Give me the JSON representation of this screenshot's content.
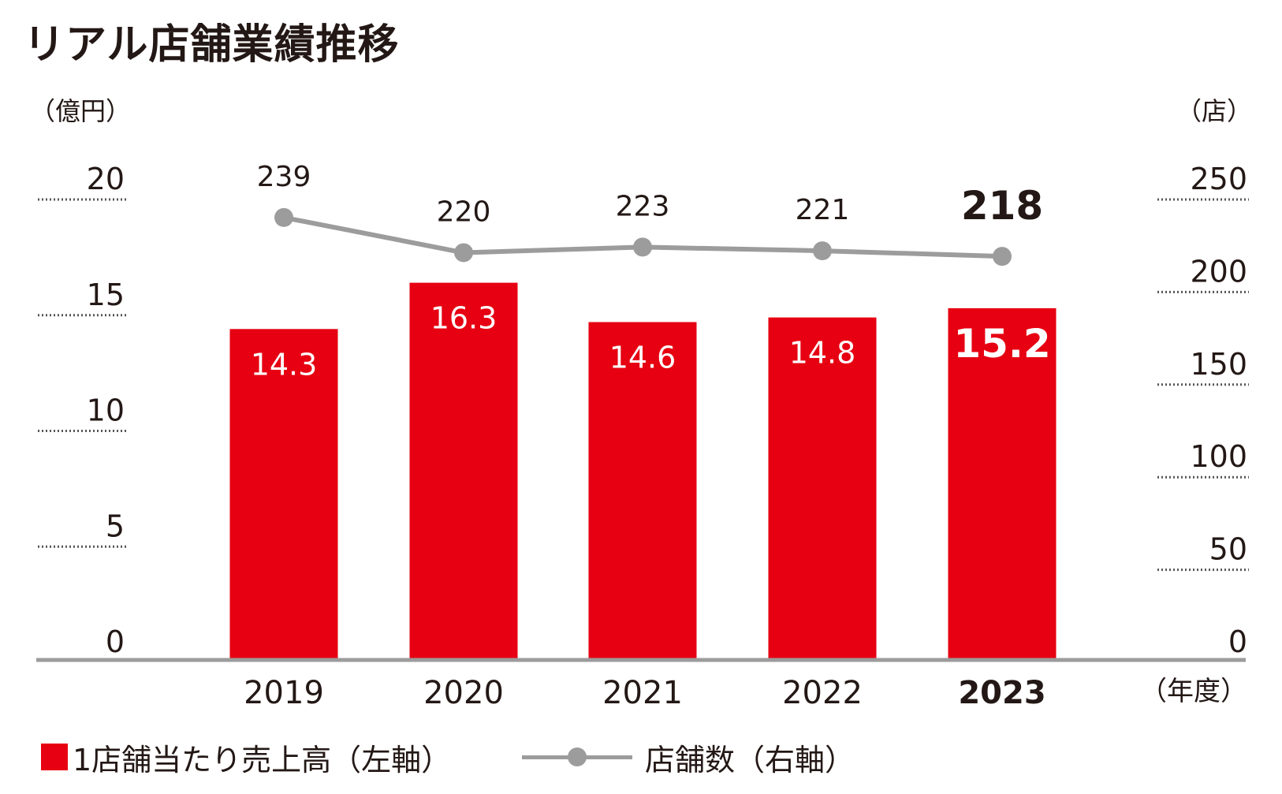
{
  "title": "リアル店舗業績推移",
  "chart_data": {
    "type": "bar+line",
    "title": "リアル店舗業績推移",
    "categories": [
      "2019",
      "2020",
      "2021",
      "2022",
      "2023"
    ],
    "x_unit": "（年度）",
    "left_axis": {
      "unit": "（億円）",
      "ylim": [
        0,
        20
      ],
      "ticks": [
        "0",
        "5",
        "10",
        "15",
        "20"
      ]
    },
    "right_axis": {
      "unit": "（店）",
      "ylim": [
        0,
        250
      ],
      "ticks": [
        "0",
        "50",
        "100",
        "150",
        "200",
        "250"
      ]
    },
    "series": [
      {
        "name": "1店舗当たり売上高（左軸）",
        "type": "bar",
        "axis": "left",
        "color": "#e60012",
        "values": [
          14.3,
          16.3,
          14.6,
          14.8,
          15.2
        ],
        "labels": [
          "14.3",
          "16.3",
          "14.6",
          "14.8",
          "15.2"
        ]
      },
      {
        "name": "店舗数（右軸）",
        "type": "line",
        "axis": "right",
        "color": "#9c9c9c",
        "values": [
          239,
          220,
          223,
          221,
          218
        ],
        "labels": [
          "239",
          "220",
          "223",
          "221",
          "218"
        ]
      }
    ],
    "highlight_category": "2023",
    "grid": "dotted",
    "legend_position": "bottom-left"
  }
}
